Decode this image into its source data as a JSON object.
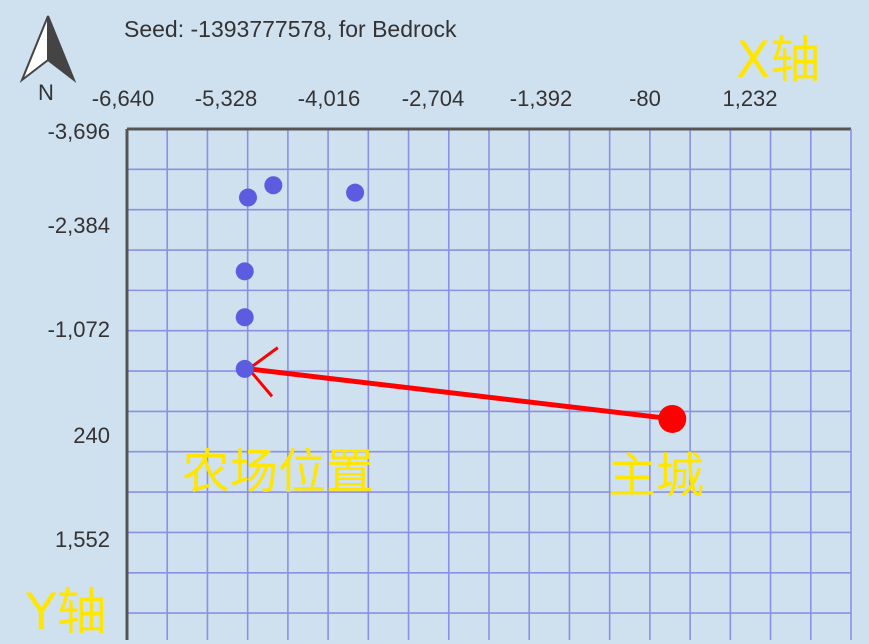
{
  "header": {
    "seed_text": "Seed: -1393777578, for Bedrock"
  },
  "compass": {
    "label": "N",
    "icon": "north-arrow-icon"
  },
  "axes": {
    "x_title": "X轴",
    "y_title": "Y轴",
    "x_ticks": [
      "-6,640",
      "-5,328",
      "-4,016",
      "-2,704",
      "-1,392",
      "-80",
      "1,232"
    ],
    "y_ticks": [
      "-3,696",
      "-2,384",
      "-1,072",
      "240",
      "1,552"
    ]
  },
  "map": {
    "x_range": [
      -6640,
      2216
    ],
    "y_range": [
      -3696,
      2536
    ],
    "grid": true,
    "colors": {
      "background": "#cfe0ef",
      "grid": "#8d8fe3",
      "axis": "#555555",
      "farm_marker": "#5b5ce0",
      "base_marker": "#ff0000",
      "arrow": "#ff0000",
      "annotation_text": "#ffe600"
    },
    "farm_points": [
      {
        "x": -5160,
        "y": -2860
      },
      {
        "x": -4850,
        "y": -3010
      },
      {
        "x": -3850,
        "y": -2920
      },
      {
        "x": -5200,
        "y": -1960
      },
      {
        "x": -5200,
        "y": -1400
      },
      {
        "x": -5200,
        "y": -770
      }
    ],
    "main_city": {
      "x": 30,
      "y": -160
    }
  },
  "annotations": {
    "farm_label": "农场位置",
    "base_label": "主城"
  }
}
